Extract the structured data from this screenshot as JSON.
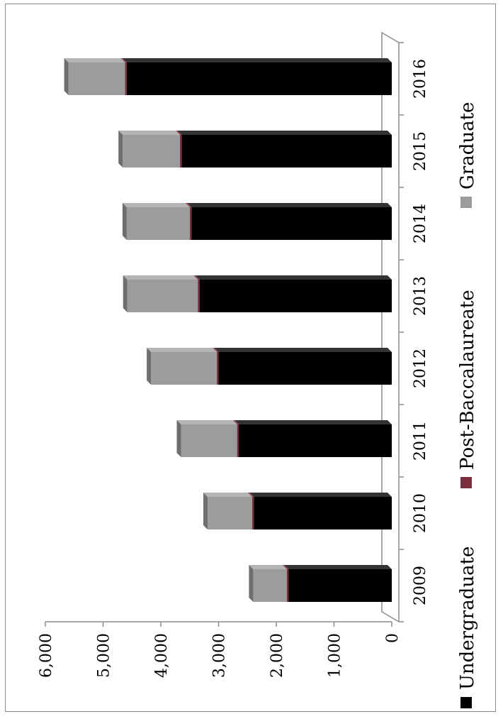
{
  "chart_data": {
    "type": "bar",
    "orientation": "rotated-stacked-3d",
    "categories": [
      "2009",
      "2010",
      "2011",
      "2012",
      "2013",
      "2014",
      "2015",
      "2016"
    ],
    "series": [
      {
        "name": "Undergraduate",
        "color": "#000000",
        "values": [
          1790,
          2390,
          2650,
          3000,
          3330,
          3470,
          3640,
          4590
        ]
      },
      {
        "name": "Post-Baccalaureate",
        "color": "#7a2f3f",
        "values": [
          30,
          30,
          30,
          30,
          30,
          30,
          30,
          30
        ]
      },
      {
        "name": "Graduate",
        "color": "#9c9c9c",
        "values": [
          580,
          770,
          970,
          1140,
          1220,
          1090,
          990,
          980
        ]
      }
    ],
    "ylim": [
      0,
      6000
    ],
    "yticks": [
      "0",
      "1,000",
      "2,000",
      "3,000",
      "4,000",
      "5,000",
      "6,000"
    ],
    "ytick_values": [
      0,
      1000,
      2000,
      3000,
      4000,
      5000,
      6000
    ],
    "legend_position": "bottom",
    "grid": false
  }
}
